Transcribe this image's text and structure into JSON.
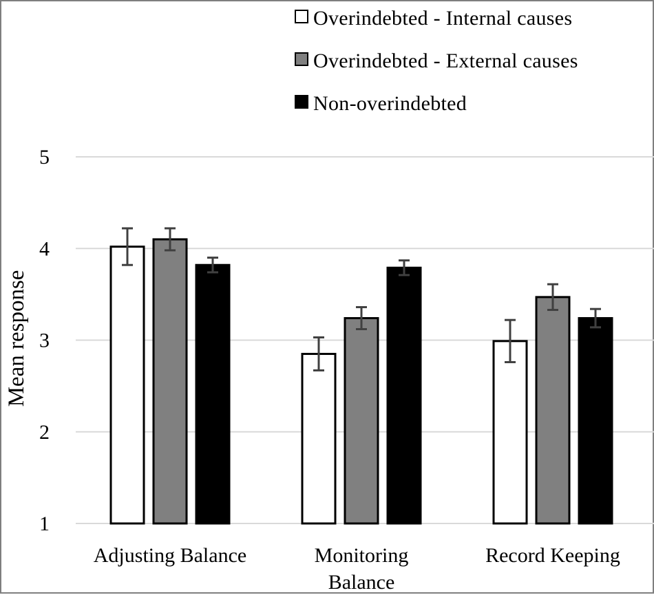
{
  "chart_data": {
    "type": "bar",
    "title": "",
    "xlabel": "",
    "ylabel": "Mean response",
    "ylim": [
      1,
      5
    ],
    "yticks": [
      "1",
      "2",
      "3",
      "4",
      "5"
    ],
    "grid": true,
    "legend_position": "top-right",
    "categories": [
      [
        "Adjusting Balance"
      ],
      [
        "Monitoring",
        "Balance"
      ],
      [
        "Record Keeping"
      ]
    ],
    "series": [
      {
        "name": "Overindebted - Internal causes",
        "color": "#ffffff",
        "values": [
          4.02,
          2.85,
          2.99
        ],
        "error": [
          0.2,
          0.18,
          0.23
        ]
      },
      {
        "name": "Overindebted - External causes",
        "color": "#808080",
        "values": [
          4.1,
          3.24,
          3.47
        ],
        "error": [
          0.12,
          0.12,
          0.14
        ]
      },
      {
        "name": "Non-overindebted",
        "color": "#000000",
        "values": [
          3.82,
          3.79,
          3.24
        ],
        "error": [
          0.08,
          0.08,
          0.1
        ]
      }
    ]
  }
}
